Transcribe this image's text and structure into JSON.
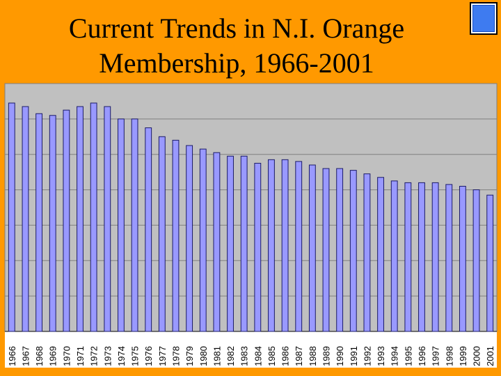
{
  "slide": {
    "title_lines": [
      "Current Trends in N.I. Orange",
      "Membership, 1966-2001"
    ],
    "background_color": "#ff9900",
    "corner_icon": "blue-square-icon"
  },
  "chart_data": {
    "type": "bar",
    "title": "Current Trends in N.I. Orange Membership, 1966-2001",
    "xlabel": "",
    "ylabel": "",
    "categories": [
      "1966",
      "1967",
      "1968",
      "1969",
      "1970",
      "1971",
      "1972",
      "1973",
      "1974",
      "1975",
      "1976",
      "1977",
      "1978",
      "1979",
      "1980",
      "1981",
      "1982",
      "1983",
      "1984",
      "1985",
      "1986",
      "1987",
      "1988",
      "1989",
      "1990",
      "1991",
      "1992",
      "1993",
      "1994",
      "1995",
      "1996",
      "1997",
      "1998",
      "1999",
      "2000",
      "2001"
    ],
    "values": [
      64.5,
      63.5,
      61.5,
      61.0,
      62.5,
      63.5,
      64.5,
      63.5,
      60.0,
      60.0,
      57.5,
      55.0,
      54.0,
      52.5,
      51.5,
      50.5,
      49.5,
      49.5,
      47.5,
      48.5,
      48.5,
      48.0,
      47.0,
      46.0,
      46.0,
      45.5,
      44.5,
      43.5,
      42.5,
      42.0,
      42.0,
      42.0,
      41.5,
      41.0,
      40.0,
      38.5
    ],
    "ylim": [
      0,
      70
    ],
    "grid": true,
    "legend": "none",
    "tick_labels_shown": false,
    "colors": {
      "bar_fill": "#9999ff",
      "bar_stroke": "#1a1a66",
      "plot_bg": "#c0c0c0",
      "gridline": "#808080"
    }
  }
}
